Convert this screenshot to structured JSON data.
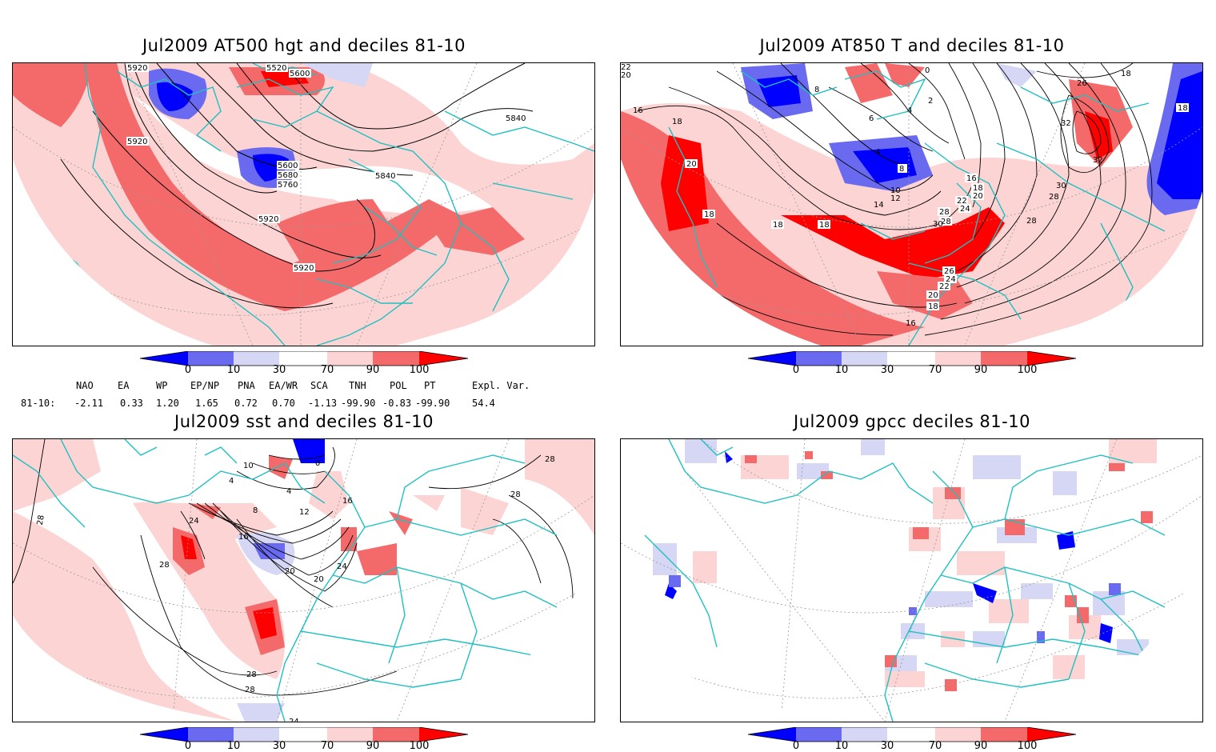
{
  "panels": [
    {
      "id": "p1",
      "title": "Jul2009 AT500 hgt and deciles 81-10",
      "contour_labels": [
        "5920",
        "5520",
        "5600",
        "5920",
        "5600",
        "5680",
        "5760",
        "5840",
        "5840",
        "5920",
        "5920"
      ]
    },
    {
      "id": "p2",
      "title": "Jul2009 AT850 T and deciles 81-10",
      "contour_labels": [
        "22",
        "20",
        "0",
        "18",
        "16",
        "8",
        "4",
        "2",
        "18",
        "4",
        "6",
        "8",
        "20",
        "10",
        "12",
        "18",
        "14",
        "16",
        "18",
        "20",
        "22",
        "24",
        "28",
        "28",
        "18",
        "18",
        "30",
        "26",
        "24",
        "22",
        "20",
        "18",
        "16",
        "26",
        "32",
        "32",
        "30",
        "28",
        "28",
        "18"
      ]
    },
    {
      "id": "p3",
      "title": "Jul2009 sst and deciles 81-10",
      "contour_labels": [
        "28",
        "28",
        "10",
        "4",
        "4",
        "0",
        "8",
        "12",
        "16",
        "24",
        "16",
        "28",
        "20",
        "20",
        "24",
        "28",
        "28",
        "28",
        "24"
      ]
    },
    {
      "id": "p4",
      "title": "Jul2009 gpcc deciles 81-10",
      "contour_labels": []
    }
  ],
  "colorbar": {
    "ticks": [
      "0",
      "10",
      "30",
      "70",
      "90",
      "100"
    ],
    "colors": {
      "dark_blue": "#0000ff",
      "mid_blue": "#6a6af0",
      "light_blue": "#d6d6f5",
      "white": "#ffffff",
      "light_red": "#fcd4d4",
      "mid_red": "#f46a6a",
      "dark_red": "#ff0000"
    }
  },
  "indices": {
    "header": [
      "NAO",
      "EA",
      "WP",
      "EP/NP",
      "PNA",
      "EA/WR",
      "SCA",
      "TNH",
      "POL",
      "PT",
      "Expl. Var."
    ],
    "row_label": "81-10:",
    "values": [
      "-2.11",
      "0.33",
      "1.20",
      "1.65",
      "0.72",
      "0.70",
      "-1.13",
      "-99.90",
      "-0.83",
      "-99.90",
      "54.4"
    ]
  },
  "colors": {
    "coast": "#20c0c0",
    "grid": "#999999",
    "contour": "#000000"
  }
}
